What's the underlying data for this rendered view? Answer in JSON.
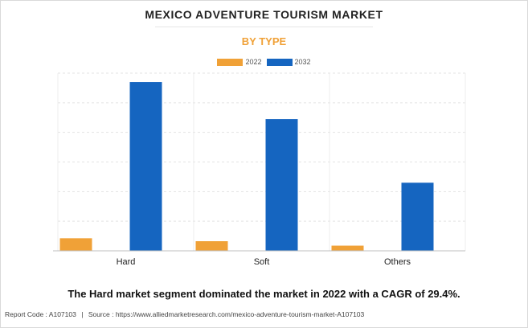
{
  "chart_data": {
    "type": "bar",
    "title": "MEXICO ADVENTURE TOURISM MARKET",
    "subtitle": "BY TYPE",
    "categories": [
      "Hard",
      "Soft",
      "Others"
    ],
    "series": [
      {
        "name": "2022",
        "color": "#f0a137",
        "values": [
          8.5,
          6.5,
          3.5
        ]
      },
      {
        "name": "2032",
        "color": "#1565c0",
        "values": [
          114,
          89,
          46
        ]
      }
    ],
    "ylim": [
      0,
      120
    ],
    "grid": true,
    "legend_position": "top-center",
    "xlabel": "",
    "ylabel": ""
  },
  "headline": "The Hard market segment dominated the market in 2022 with a CAGR of 29.4%.",
  "footer": {
    "report_code": "Report Code : A107103",
    "separator": "|",
    "source": "Source : https://www.alliedmarketresearch.com/mexico-adventure-tourism-market-A107103"
  }
}
